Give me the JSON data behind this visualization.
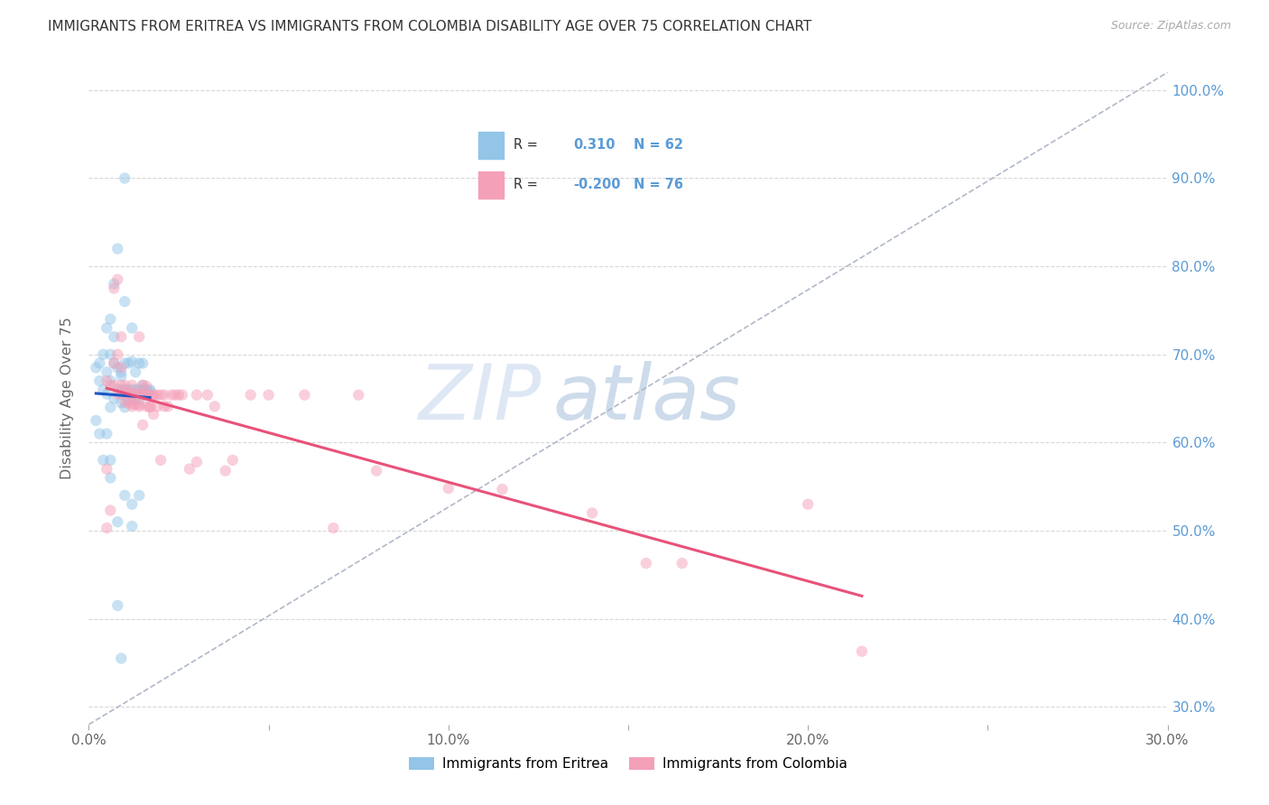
{
  "title": "IMMIGRANTS FROM ERITREA VS IMMIGRANTS FROM COLOMBIA DISABILITY AGE OVER 75 CORRELATION CHART",
  "source": "Source: ZipAtlas.com",
  "ylabel": "Disability Age Over 75",
  "xlim": [
    0.0,
    0.3
  ],
  "ylim": [
    0.28,
    1.02
  ],
  "xtick_vals": [
    0.0,
    0.05,
    0.1,
    0.15,
    0.2,
    0.25,
    0.3
  ],
  "xtick_labels": [
    "0.0%",
    "",
    "10.0%",
    "",
    "20.0%",
    "",
    "30.0%"
  ],
  "ytick_vals_right": [
    0.3,
    0.4,
    0.5,
    0.6,
    0.7,
    0.8,
    0.9,
    1.0
  ],
  "ytick_labels_right": [
    "30.0%",
    "40.0%",
    "50.0%",
    "60.0%",
    "70.0%",
    "80.0%",
    "90.0%",
    "100.0%"
  ],
  "color_eritrea": "#92C5E8",
  "color_colombia": "#F4A0B8",
  "line_color_eritrea": "#1A56C4",
  "line_color_colombia": "#E8527A",
  "R_eritrea": 0.31,
  "N_eritrea": 62,
  "R_colombia": -0.2,
  "N_colombia": 76,
  "legend_label_eritrea": "Immigrants from Eritrea",
  "legend_label_colombia": "Immigrants from Colombia",
  "watermark": "ZIPatlas",
  "background_color": "#FFFFFF",
  "grid_color": "#D8D8D8",
  "right_axis_color": "#5B9BD5",
  "scatter_alpha": 0.5,
  "scatter_size": 80,
  "eritrea_points": [
    [
      0.002,
      0.685
    ],
    [
      0.003,
      0.67
    ],
    [
      0.003,
      0.69
    ],
    [
      0.004,
      0.7
    ],
    [
      0.004,
      0.66
    ],
    [
      0.005,
      0.73
    ],
    [
      0.005,
      0.68
    ],
    [
      0.005,
      0.655
    ],
    [
      0.006,
      0.74
    ],
    [
      0.006,
      0.7
    ],
    [
      0.006,
      0.67
    ],
    [
      0.006,
      0.64
    ],
    [
      0.007,
      0.78
    ],
    [
      0.007,
      0.69
    ],
    [
      0.007,
      0.65
    ],
    [
      0.007,
      0.72
    ],
    [
      0.008,
      0.685
    ],
    [
      0.008,
      0.66
    ],
    [
      0.008,
      0.82
    ],
    [
      0.009,
      0.675
    ],
    [
      0.009,
      0.655
    ],
    [
      0.009,
      0.68
    ],
    [
      0.009,
      0.66
    ],
    [
      0.009,
      0.645
    ],
    [
      0.01,
      0.64
    ],
    [
      0.01,
      0.9
    ],
    [
      0.01,
      0.76
    ],
    [
      0.01,
      0.69
    ],
    [
      0.01,
      0.66
    ],
    [
      0.011,
      0.65
    ],
    [
      0.011,
      0.69
    ],
    [
      0.011,
      0.66
    ],
    [
      0.011,
      0.648
    ],
    [
      0.012,
      0.53
    ],
    [
      0.012,
      0.73
    ],
    [
      0.012,
      0.692
    ],
    [
      0.012,
      0.66
    ],
    [
      0.013,
      0.65
    ],
    [
      0.013,
      0.68
    ],
    [
      0.013,
      0.66
    ],
    [
      0.014,
      0.66
    ],
    [
      0.014,
      0.648
    ],
    [
      0.014,
      0.69
    ],
    [
      0.015,
      0.66
    ],
    [
      0.015,
      0.665
    ],
    [
      0.015,
      0.69
    ],
    [
      0.016,
      0.66
    ],
    [
      0.016,
      0.655
    ],
    [
      0.017,
      0.66
    ],
    [
      0.017,
      0.658
    ],
    [
      0.006,
      0.56
    ],
    [
      0.008,
      0.51
    ],
    [
      0.01,
      0.54
    ],
    [
      0.012,
      0.505
    ],
    [
      0.014,
      0.54
    ],
    [
      0.002,
      0.625
    ],
    [
      0.003,
      0.61
    ],
    [
      0.004,
      0.58
    ],
    [
      0.005,
      0.61
    ],
    [
      0.006,
      0.58
    ],
    [
      0.008,
      0.415
    ],
    [
      0.009,
      0.355
    ]
  ],
  "colombia_points": [
    [
      0.005,
      0.67
    ],
    [
      0.006,
      0.665
    ],
    [
      0.007,
      0.665
    ],
    [
      0.007,
      0.69
    ],
    [
      0.008,
      0.7
    ],
    [
      0.008,
      0.655
    ],
    [
      0.009,
      0.685
    ],
    [
      0.009,
      0.656
    ],
    [
      0.009,
      0.665
    ],
    [
      0.01,
      0.646
    ],
    [
      0.01,
      0.665
    ],
    [
      0.01,
      0.656
    ],
    [
      0.011,
      0.657
    ],
    [
      0.011,
      0.645
    ],
    [
      0.011,
      0.655
    ],
    [
      0.012,
      0.644
    ],
    [
      0.012,
      0.655
    ],
    [
      0.012,
      0.641
    ],
    [
      0.012,
      0.665
    ],
    [
      0.013,
      0.655
    ],
    [
      0.013,
      0.643
    ],
    [
      0.013,
      0.655
    ],
    [
      0.014,
      0.643
    ],
    [
      0.014,
      0.655
    ],
    [
      0.014,
      0.641
    ],
    [
      0.015,
      0.665
    ],
    [
      0.015,
      0.655
    ],
    [
      0.015,
      0.62
    ],
    [
      0.015,
      0.654
    ],
    [
      0.016,
      0.641
    ],
    [
      0.016,
      0.664
    ],
    [
      0.016,
      0.654
    ],
    [
      0.017,
      0.641
    ],
    [
      0.017,
      0.654
    ],
    [
      0.017,
      0.64
    ],
    [
      0.018,
      0.653
    ],
    [
      0.018,
      0.632
    ],
    [
      0.018,
      0.654
    ],
    [
      0.019,
      0.641
    ],
    [
      0.019,
      0.654
    ],
    [
      0.02,
      0.654
    ],
    [
      0.021,
      0.641
    ],
    [
      0.021,
      0.654
    ],
    [
      0.022,
      0.641
    ],
    [
      0.023,
      0.654
    ],
    [
      0.024,
      0.654
    ],
    [
      0.025,
      0.654
    ],
    [
      0.026,
      0.654
    ],
    [
      0.028,
      0.57
    ],
    [
      0.03,
      0.654
    ],
    [
      0.033,
      0.654
    ],
    [
      0.035,
      0.641
    ],
    [
      0.04,
      0.58
    ],
    [
      0.045,
      0.654
    ],
    [
      0.05,
      0.654
    ],
    [
      0.06,
      0.654
    ],
    [
      0.068,
      0.503
    ],
    [
      0.075,
      0.654
    ],
    [
      0.007,
      0.775
    ],
    [
      0.008,
      0.785
    ],
    [
      0.009,
      0.72
    ],
    [
      0.014,
      0.72
    ],
    [
      0.02,
      0.58
    ],
    [
      0.03,
      0.578
    ],
    [
      0.038,
      0.568
    ],
    [
      0.08,
      0.568
    ],
    [
      0.1,
      0.548
    ],
    [
      0.115,
      0.547
    ],
    [
      0.14,
      0.52
    ],
    [
      0.155,
      0.463
    ],
    [
      0.165,
      0.463
    ],
    [
      0.2,
      0.53
    ],
    [
      0.215,
      0.363
    ],
    [
      0.005,
      0.503
    ],
    [
      0.006,
      0.523
    ],
    [
      0.005,
      0.57
    ]
  ]
}
